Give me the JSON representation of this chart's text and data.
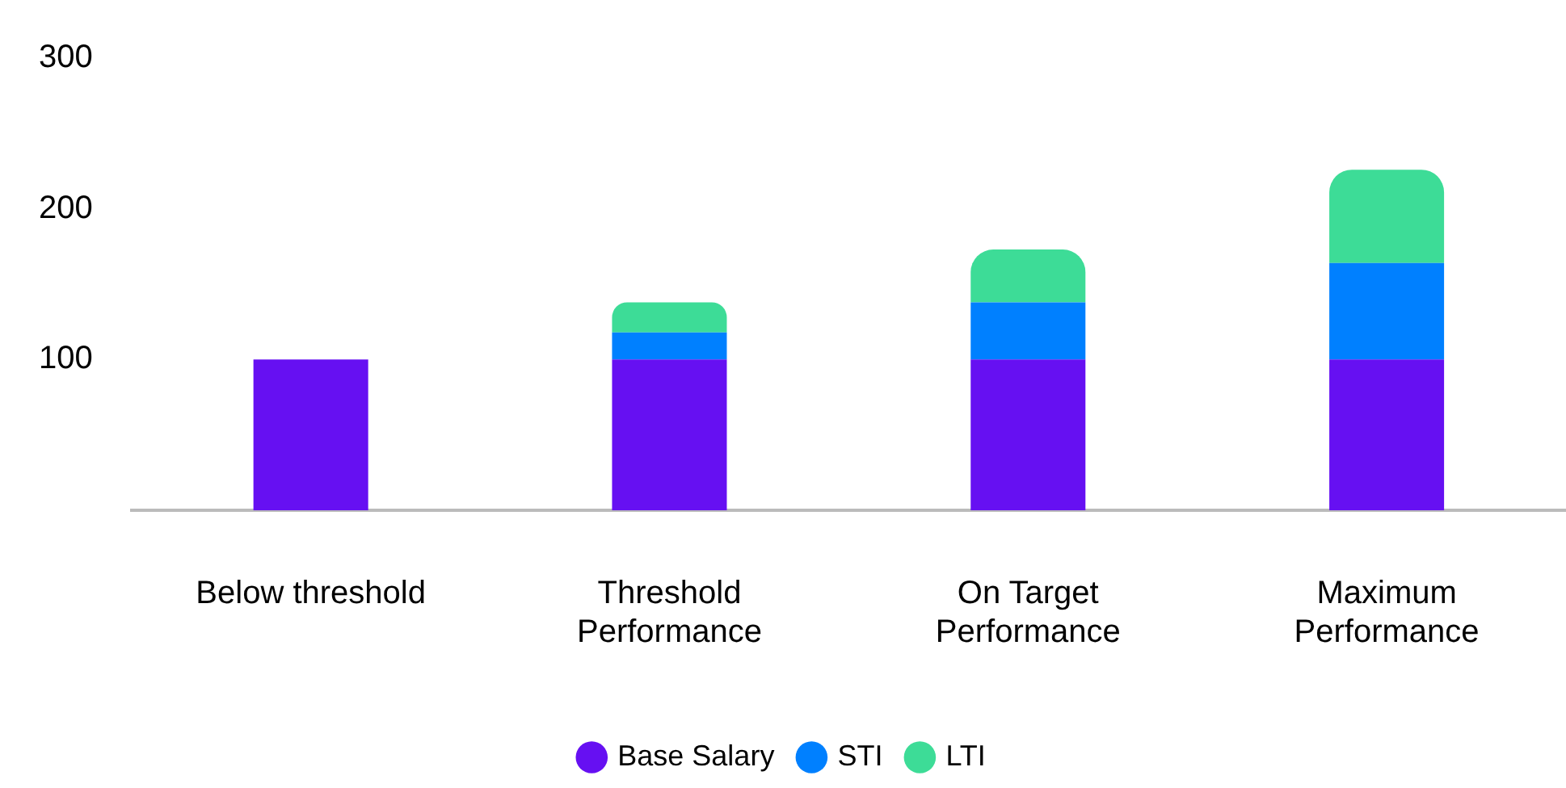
{
  "chart_data": {
    "type": "bar",
    "stacked": true,
    "categories": [
      "Below threshold",
      "Threshold Performance",
      "On Target Performance",
      "Maximum Performance"
    ],
    "series": [
      {
        "name": "Base Salary",
        "color": "#6610f2",
        "values": [
          100,
          100,
          100,
          100
        ]
      },
      {
        "name": "STI",
        "color": "#0080ff",
        "values": [
          null,
          18,
          38,
          64
        ]
      },
      {
        "name": "LTI",
        "color": "#3ddc97",
        "values": [
          null,
          20,
          35,
          62
        ]
      }
    ],
    "ylim": [
      0,
      300
    ],
    "yticks": [
      100,
      200,
      300
    ],
    "grid": false,
    "legend": "bottom"
  }
}
